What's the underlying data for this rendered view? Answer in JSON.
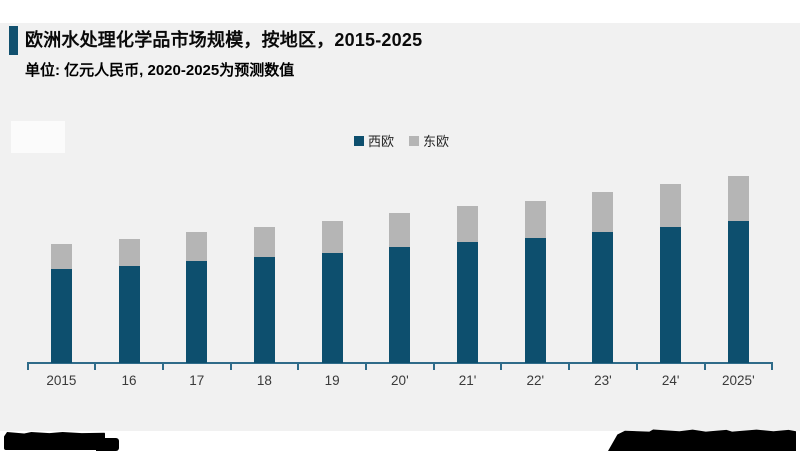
{
  "header": {
    "title": "欧洲水处理化学品市场规模，按地区，2015-2025",
    "subtitle": "单位: 亿元人民币, 2020-2025为预测数值",
    "accent_color": "#12516f"
  },
  "legend": {
    "items": [
      {
        "label": "西欧",
        "color": "#0d4f6e"
      },
      {
        "label": "东欧",
        "color": "#b5b5b5"
      }
    ]
  },
  "chart_data": {
    "type": "bar",
    "stacked": true,
    "title": "欧洲水处理化学品市场规模，按地区，2015-2025",
    "unit_label": "亿元人民币",
    "xlabel": "",
    "ylabel": "",
    "categories": [
      "2015",
      "16",
      "17",
      "18",
      "19",
      "20'",
      "21'",
      "22'",
      "23'",
      "24'",
      "2025'"
    ],
    "series": [
      {
        "name": "西欧",
        "color": "#0d4f6e",
        "values": [
          188,
          194,
          204,
          212,
          220,
          232,
          242,
          250,
          262,
          272,
          284
        ]
      },
      {
        "name": "东欧",
        "color": "#b5b5b5",
        "values": [
          50,
          54,
          58,
          60,
          64,
          68,
          72,
          74,
          80,
          86,
          90
        ]
      }
    ],
    "ylim": [
      0,
      400
    ],
    "grid": false,
    "y_axis_shown": false,
    "legend_position": "top-center",
    "axis_color": "#2f6b89",
    "background": "#f1f1f1"
  },
  "colors": {
    "page_bg": "#ffffff",
    "panel_bg": "#f1f1f1",
    "bar_west": "#0d4f6e",
    "bar_east": "#b5b5b5",
    "axis": "#2f6b89"
  },
  "redactions": {
    "bottom_left": "redacted-logo",
    "bottom_right": "redacted-source-text"
  }
}
